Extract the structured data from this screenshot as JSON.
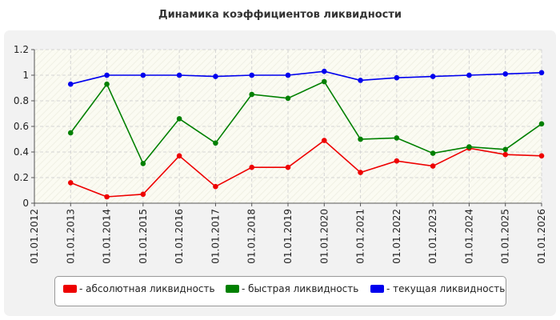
{
  "chart_data": {
    "type": "line",
    "title": "Динамика коэффициентов ликвидности",
    "x": [
      "01.01.2012",
      "01.01.2013",
      "01.01.2014",
      "01.01.2015",
      "01.01.2016",
      "01.01.2017",
      "01.01.2018",
      "01.01.2019",
      "01.01.2020",
      "01.01.2021",
      "01.01.2022",
      "01.01.2023",
      "01.01.2024",
      "01.01.2025",
      "01.01.2026"
    ],
    "yticks": [
      "0",
      "0.2",
      "0.4",
      "0.6",
      "0.8",
      "1",
      "1.2"
    ],
    "ylim": [
      0,
      1.2
    ],
    "grid": true,
    "legend_position": "bottom",
    "series": [
      {
        "name": "- абсолютная ликвидность",
        "color": "#ee0000",
        "values": [
          null,
          0.16,
          0.05,
          0.07,
          0.37,
          0.13,
          0.28,
          0.28,
          0.49,
          0.24,
          0.33,
          0.29,
          0.43,
          0.38,
          0.37
        ]
      },
      {
        "name": "- быстрая ликвидность",
        "color": "#008000",
        "values": [
          null,
          0.55,
          0.93,
          0.31,
          0.66,
          0.47,
          0.85,
          0.82,
          0.95,
          0.5,
          0.51,
          0.39,
          0.44,
          0.42,
          0.62
        ]
      },
      {
        "name": "- текущая ликвидность",
        "color": "#0000ee",
        "values": [
          null,
          0.93,
          1.0,
          1.0,
          1.0,
          0.99,
          1.0,
          1.0,
          1.03,
          0.96,
          0.98,
          0.99,
          1.0,
          1.01,
          1.02
        ]
      }
    ]
  }
}
